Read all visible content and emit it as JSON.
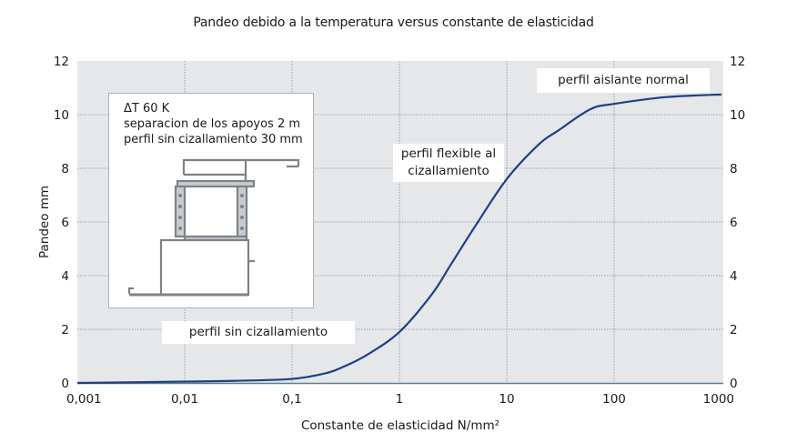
{
  "title": "Pandeo debido a la temperatura versus constante de elasticidad",
  "axes": {
    "xlabel": "Constante de elasticidad  N/mm²",
    "ylabel": "Pandeo mm",
    "x_ticks": [
      "0,001",
      "0,01",
      "0,1",
      "1",
      "10",
      "100",
      "1000"
    ],
    "y_ticks": [
      "0",
      "2",
      "4",
      "6",
      "8",
      "10",
      "12"
    ]
  },
  "annotations": {
    "normal": "perfil aislante normal",
    "flexible_line1": "perfil flexible al",
    "flexible_line2": "cizallamiento",
    "sin": "perfil sin cizallamiento"
  },
  "inset": {
    "line1": "ΔT 60 K",
    "line2": "separacion de los apoyos 2 m",
    "line3": "perfil sin cizallamiento 30 mm"
  },
  "colors": {
    "plot_bg": "#e6e7e9",
    "curve": "#1f3f86",
    "grid": "#8aa6bf",
    "axis": "#5a7f93"
  },
  "chart_data": {
    "type": "line",
    "title": "Pandeo debido a la temperatura versus constante de elasticidad",
    "xlabel": "Constante de elasticidad N/mm²",
    "ylabel": "Pandeo mm",
    "xscale": "log",
    "xlim": [
      0.001,
      1000
    ],
    "ylim": [
      0,
      12
    ],
    "grid": true,
    "x_tick_labels": [
      "0,001",
      "0,01",
      "0,1",
      "1",
      "10",
      "100",
      "1000"
    ],
    "y_tick_labels": [
      "0",
      "2",
      "4",
      "6",
      "8",
      "10",
      "12"
    ],
    "secondary_y_axis": true,
    "series": [
      {
        "name": "Pandeo",
        "x": [
          0.001,
          0.01,
          0.03,
          0.1,
          0.2,
          0.3,
          0.5,
          1,
          2,
          3,
          5,
          10,
          20,
          30,
          60,
          100,
          300,
          1000
        ],
        "y": [
          0.0,
          0.05,
          0.08,
          0.15,
          0.35,
          0.6,
          1.05,
          1.9,
          3.3,
          4.4,
          5.8,
          7.6,
          8.9,
          9.4,
          10.2,
          10.4,
          10.65,
          10.75
        ]
      }
    ],
    "annotations": [
      "perfil sin cizallamiento",
      "perfil flexible al cizallamiento",
      "perfil aislante normal",
      "ΔT 60 K",
      "separacion de los apoyos 2 m",
      "perfil sin cizallamiento 30 mm"
    ]
  }
}
